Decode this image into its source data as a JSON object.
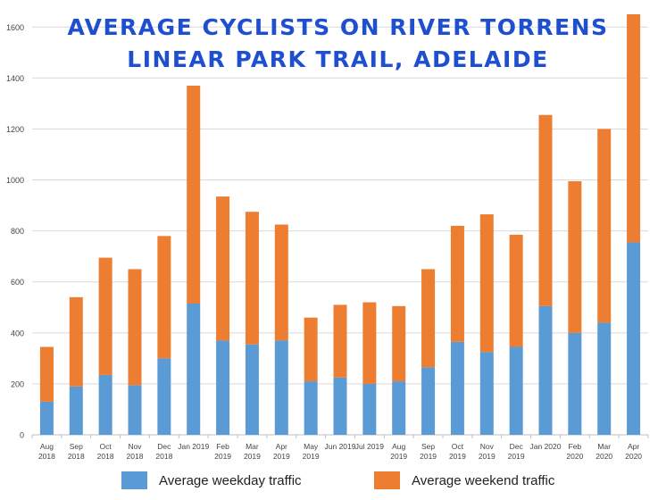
{
  "chart_data": {
    "type": "bar",
    "stacked": true,
    "title_lines": [
      "Average Cyclists on River Torrens",
      "Linear Park Trail, Adelaide"
    ],
    "categories": [
      [
        "Aug",
        "2018"
      ],
      [
        "Sep",
        "2018"
      ],
      [
        "Oct",
        "2018"
      ],
      [
        "Nov",
        "2018"
      ],
      [
        "Dec",
        "2018"
      ],
      [
        "Jan 2019",
        ""
      ],
      [
        "Feb",
        "2019"
      ],
      [
        "Mar",
        "2019"
      ],
      [
        "Apr",
        "2019"
      ],
      [
        "May",
        "2019"
      ],
      [
        "Jun 2019",
        ""
      ],
      [
        "Jul 2019",
        ""
      ],
      [
        "Aug",
        "2019"
      ],
      [
        "Sep",
        "2019"
      ],
      [
        "Oct",
        "2019"
      ],
      [
        "Nov",
        "2019"
      ],
      [
        "Dec",
        "2019"
      ],
      [
        "Jan 2020",
        ""
      ],
      [
        "Feb",
        "2020"
      ],
      [
        "Mar",
        "2020"
      ],
      [
        "Apr",
        "2020"
      ]
    ],
    "series": [
      {
        "name": "Average weekday traffic",
        "color": "#5b9bd5",
        "values": [
          130,
          190,
          235,
          195,
          300,
          515,
          370,
          355,
          370,
          210,
          225,
          200,
          210,
          265,
          365,
          325,
          345,
          505,
          400,
          440,
          755
        ]
      },
      {
        "name": "Average weekend traffic",
        "color": "#ed7d31",
        "values": [
          215,
          350,
          460,
          455,
          480,
          855,
          565,
          520,
          455,
          250,
          285,
          320,
          295,
          385,
          455,
          540,
          440,
          750,
          595,
          760,
          895
        ]
      }
    ],
    "yticks": [
      0,
      200,
      400,
      600,
      800,
      1000,
      1200,
      1400,
      1600
    ],
    "ylim": [
      0,
      1650
    ],
    "grid": true,
    "legend_position": "bottom",
    "xlabel": "",
    "ylabel": ""
  },
  "legend": {
    "weekday_label": "Average weekday traffic",
    "weekend_label": "Average weekend traffic"
  }
}
